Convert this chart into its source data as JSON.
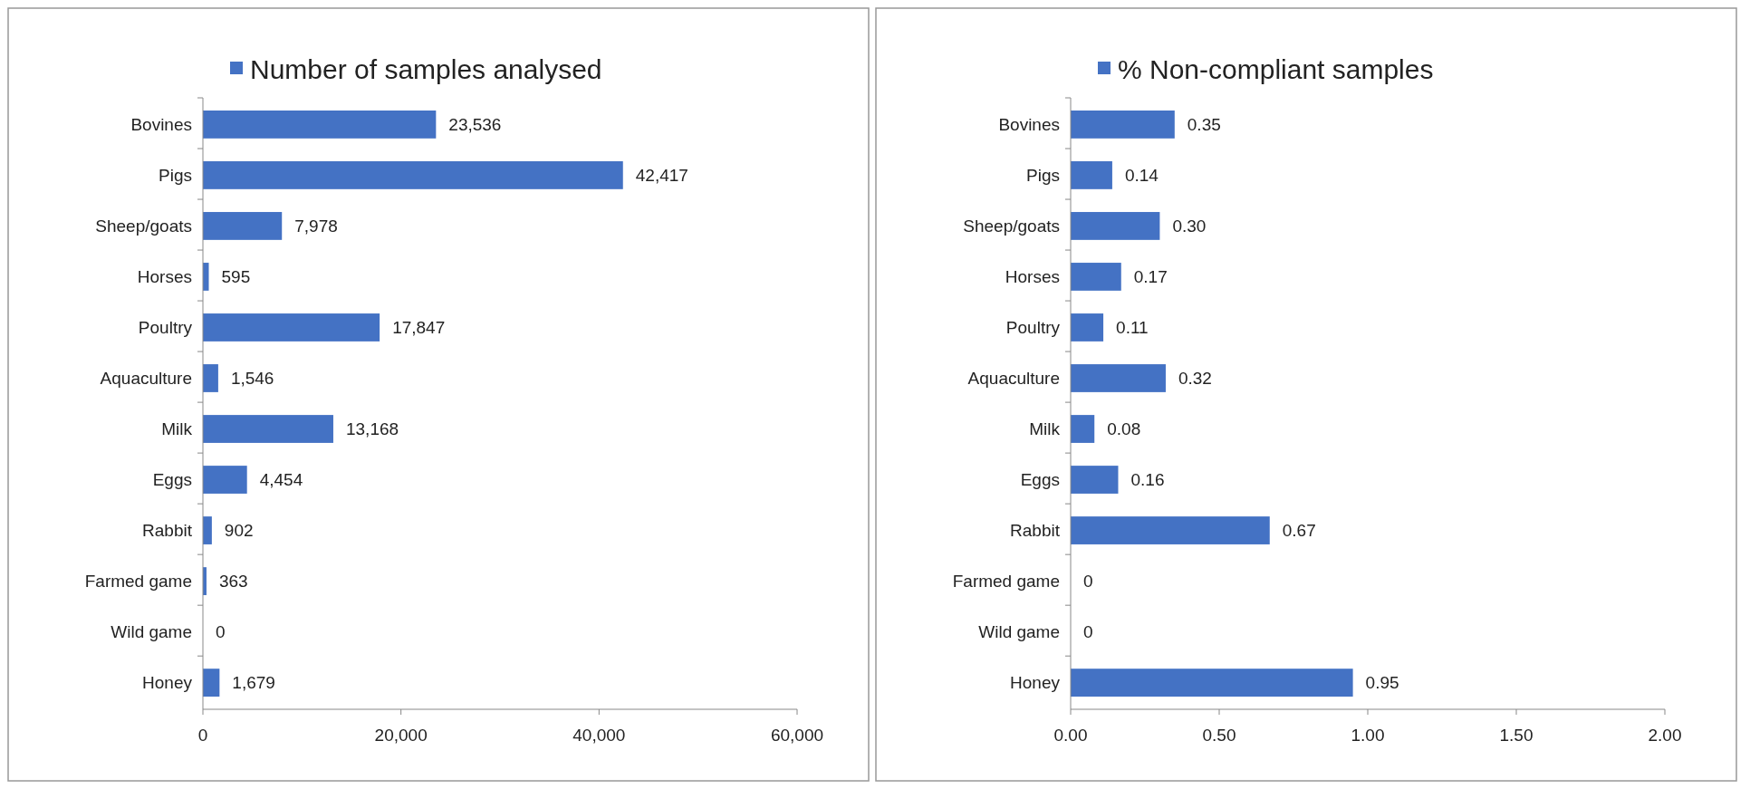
{
  "chart_data": [
    {
      "type": "bar",
      "orientation": "horizontal",
      "categories": [
        "Bovines",
        "Pigs",
        "Sheep/goats",
        "Horses",
        "Poultry",
        "Aquaculture",
        "Milk",
        "Eggs",
        "Rabbit",
        "Farmed game",
        "Wild game",
        "Honey"
      ],
      "series": [
        {
          "name": "Number of samples analysed",
          "color": "#4472c4",
          "values": [
            23536,
            42417,
            7978,
            595,
            17847,
            1546,
            13168,
            4454,
            902,
            363,
            0,
            1679
          ],
          "value_labels": [
            "23,536",
            "42,417",
            "7,978",
            "595",
            "17,847",
            "1,546",
            "13,168",
            "4,454",
            "902",
            "363",
            "0",
            "1,679"
          ]
        }
      ],
      "xlim": [
        0,
        60000
      ],
      "xticks": [
        0,
        {
          "value": 20000,
          "label": "20,000"
        },
        {
          "value": 40000,
          "label": "40,000"
        },
        {
          "value": 60000,
          "label": "60,000"
        }
      ],
      "grid": false,
      "legend": "top"
    },
    {
      "type": "bar",
      "orientation": "horizontal",
      "categories": [
        "Bovines",
        "Pigs",
        "Sheep/goats",
        "Horses",
        "Poultry",
        "Aquaculture",
        "Milk",
        "Eggs",
        "Rabbit",
        "Farmed game",
        "Wild game",
        "Honey"
      ],
      "series": [
        {
          "name": "%  Non-compliant samples",
          "color": "#4472c4",
          "values": [
            0.35,
            0.14,
            0.3,
            0.17,
            0.11,
            0.32,
            0.08,
            0.16,
            0.67,
            0,
            0,
            0.95
          ],
          "value_labels": [
            "0.35",
            "0.14",
            "0.30",
            "0.17",
            "0.11",
            "0.32",
            "0.08",
            "0.16",
            "0.67",
            "0",
            "0",
            "0.95"
          ]
        }
      ],
      "xlim": [
        0,
        2
      ],
      "xticks": [
        {
          "value": 0,
          "label": "0.00"
        },
        {
          "value": 0.5,
          "label": "0.50"
        },
        {
          "value": 1,
          "label": "1.00"
        },
        {
          "value": 1.5,
          "label": "1.50"
        },
        {
          "value": 2,
          "label": "2.00"
        }
      ],
      "grid": false,
      "legend": "top"
    }
  ]
}
